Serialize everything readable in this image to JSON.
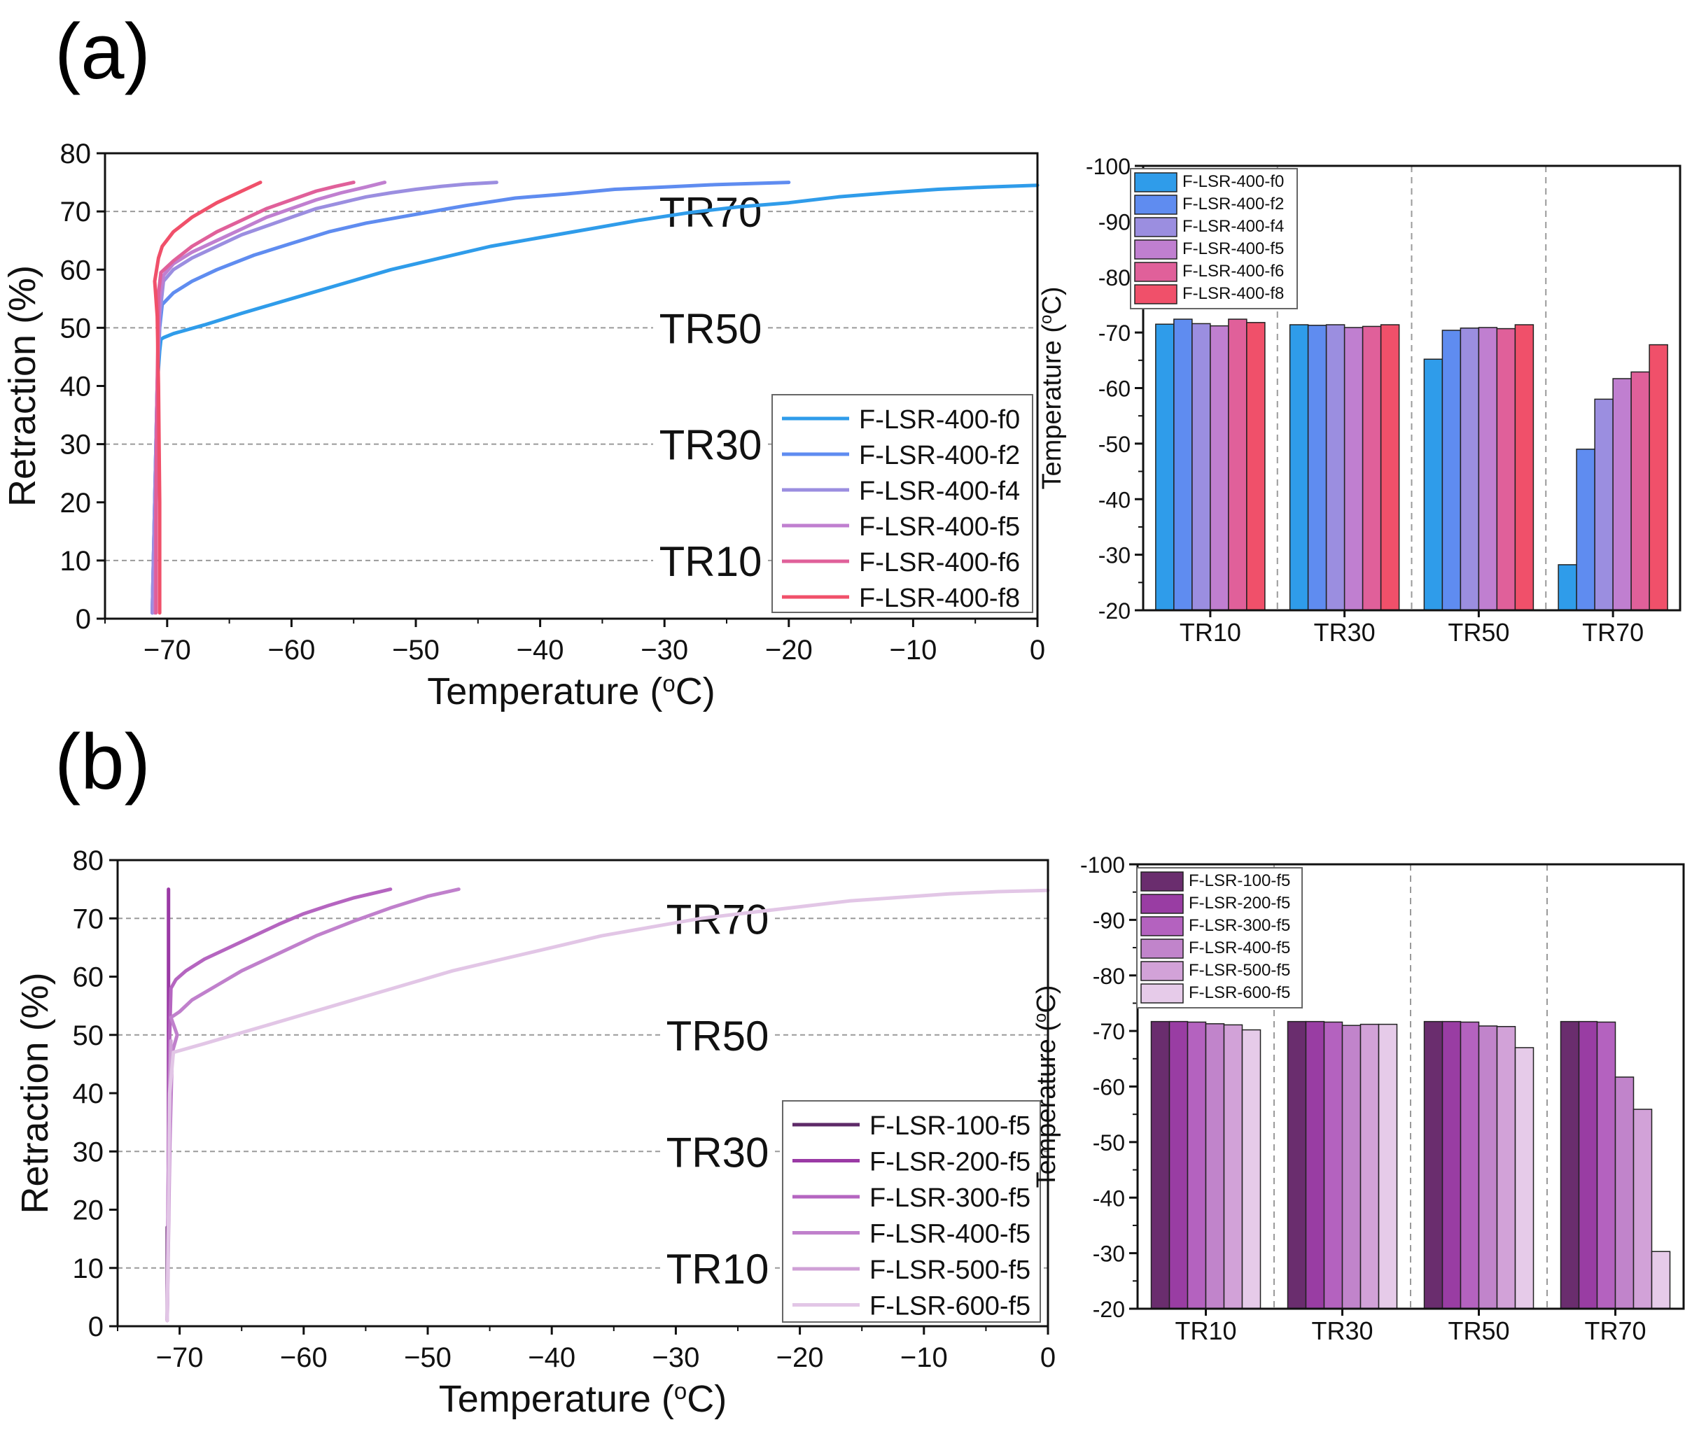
{
  "panels": [
    {
      "label": "(a)"
    },
    {
      "label": "(b)"
    }
  ],
  "chart_data": [
    {
      "type": "line",
      "panel": "(a)",
      "xlabel": "Temperature (oC)",
      "ylabel": "Retraction (%)",
      "xlim": [
        -75,
        0
      ],
      "ylim": [
        0,
        80
      ],
      "xticks": [
        -70,
        -60,
        -50,
        -40,
        -30,
        -20,
        -10,
        0
      ],
      "yticks": [
        0,
        10,
        20,
        30,
        40,
        50,
        60,
        70,
        80
      ],
      "reference_lines": [
        {
          "y": 10,
          "label": "TR10"
        },
        {
          "y": 30,
          "label": "TR30"
        },
        {
          "y": 50,
          "label": "TR50"
        },
        {
          "y": 70,
          "label": "TR70"
        }
      ],
      "legend_position": "lower-right",
      "series": [
        {
          "name": "F-LSR-400-f0",
          "color": "#2f9cea",
          "x": [
            -71.2,
            -71.0,
            -70.8,
            -70.6,
            -70.5,
            -70.3,
            -69.5,
            -67,
            -64,
            -60,
            -56,
            -52,
            -48,
            -44,
            -40,
            -36,
            -32,
            -28,
            -24,
            -20,
            -16,
            -12,
            -8,
            -4,
            0
          ],
          "y": [
            1,
            20,
            40,
            46,
            48,
            48.3,
            49,
            50.5,
            52.5,
            55,
            57.5,
            60,
            62,
            64,
            65.5,
            67,
            68.5,
            69.8,
            70.8,
            71.5,
            72.5,
            73.2,
            73.8,
            74.2,
            74.5
          ]
        },
        {
          "name": "F-LSR-400-f2",
          "color": "#5f8cf0",
          "x": [
            -71.2,
            -71.0,
            -70.8,
            -70.6,
            -70.4,
            -69.5,
            -68,
            -66,
            -63,
            -60,
            -57,
            -54,
            -50,
            -46,
            -42,
            -38,
            -34,
            -30,
            -26,
            -20
          ],
          "y": [
            1,
            20,
            40,
            50,
            54,
            56,
            58,
            60,
            62.5,
            64.5,
            66.5,
            68,
            69.5,
            71,
            72.3,
            73,
            73.8,
            74.2,
            74.6,
            75
          ]
        },
        {
          "name": "F-LSR-400-f4",
          "color": "#9b8ee0",
          "x": [
            -71.2,
            -71.0,
            -70.8,
            -70.6,
            -70.3,
            -69.5,
            -68,
            -66,
            -64,
            -62,
            -60,
            -58,
            -56,
            -54,
            -52,
            -50,
            -48,
            -46,
            -43.5
          ],
          "y": [
            1,
            20,
            40,
            52,
            58,
            60,
            62,
            64,
            66,
            67.5,
            69,
            70.5,
            71.5,
            72.5,
            73.2,
            73.8,
            74.3,
            74.7,
            75
          ]
        },
        {
          "name": "F-LSR-400-f5",
          "color": "#c07fd0",
          "x": [
            -71.0,
            -70.9,
            -70.8,
            -70.6,
            -70.3,
            -69.5,
            -68,
            -66,
            -64,
            -62,
            -60,
            -58,
            -56,
            -54,
            -52.5
          ],
          "y": [
            1,
            20,
            40,
            55,
            59,
            61,
            63,
            65,
            67,
            69,
            70.5,
            72,
            73.2,
            74.2,
            75
          ]
        },
        {
          "name": "F-LSR-400-f6",
          "color": "#e0609a",
          "x": [
            -70.9,
            -70.9,
            -70.8,
            -70.7,
            -70.5,
            -69.5,
            -68,
            -66,
            -64,
            -62,
            -60,
            -58,
            -56.5,
            -55
          ],
          "y": [
            1,
            20,
            40,
            56,
            59.5,
            61.5,
            64,
            66.5,
            68.5,
            70.5,
            72,
            73.5,
            74.3,
            75
          ]
        },
        {
          "name": "F-LSR-400-f8",
          "color": "#f0506a",
          "x": [
            -70.6,
            -70.6,
            -70.7,
            -70.8,
            -71.0,
            -70.7,
            -70.4,
            -69.5,
            -68,
            -66,
            -64,
            -62.5
          ],
          "y": [
            1,
            20,
            40,
            52,
            58,
            62,
            64,
            66.5,
            69,
            71.5,
            73.5,
            75
          ]
        }
      ]
    },
    {
      "type": "bar",
      "panel": "(a)",
      "ylabel": "Temperature (oC)",
      "ylim": [
        -20,
        -100
      ],
      "yticks": [
        -20,
        -30,
        -40,
        -50,
        -60,
        -70,
        -80,
        -90,
        -100
      ],
      "categories": [
        "TR10",
        "TR30",
        "TR50",
        "TR70"
      ],
      "legend_position": "top-left",
      "series": [
        {
          "name": "F-LSR-400-f0",
          "color": "#2f9cea",
          "values": [
            -71.5,
            -71.4,
            -65.2,
            -28.2
          ]
        },
        {
          "name": "F-LSR-400-f2",
          "color": "#5f8cf0",
          "values": [
            -72.4,
            -71.3,
            -70.4,
            -49.0
          ]
        },
        {
          "name": "F-LSR-400-f4",
          "color": "#9b8ee0",
          "values": [
            -71.6,
            -71.4,
            -70.8,
            -58.0
          ]
        },
        {
          "name": "F-LSR-400-f5",
          "color": "#c07fd0",
          "values": [
            -71.2,
            -70.9,
            -70.9,
            -61.7
          ]
        },
        {
          "name": "F-LSR-400-f6",
          "color": "#e0609a",
          "values": [
            -72.4,
            -71.1,
            -70.7,
            -62.9
          ]
        },
        {
          "name": "F-LSR-400-f8",
          "color": "#f0506a",
          "values": [
            -71.8,
            -71.4,
            -71.4,
            -67.8
          ]
        }
      ]
    },
    {
      "type": "line",
      "panel": "(b)",
      "xlabel": "Temperature (oC)",
      "ylabel": "Retraction (%)",
      "xlim": [
        -75,
        0
      ],
      "ylim": [
        0,
        80
      ],
      "xticks": [
        -70,
        -60,
        -50,
        -40,
        -30,
        -20,
        -10,
        0
      ],
      "yticks": [
        0,
        10,
        20,
        30,
        40,
        50,
        60,
        70,
        80
      ],
      "reference_lines": [
        {
          "y": 10,
          "label": "TR10"
        },
        {
          "y": 30,
          "label": "TR30"
        },
        {
          "y": 50,
          "label": "TR50"
        },
        {
          "y": 70,
          "label": "TR70"
        }
      ],
      "legend_position": "lower-right",
      "series": [
        {
          "name": "F-LSR-100-f5",
          "color": "#5e2a68",
          "x": [
            -71.0,
            -71.0,
            -71.0
          ],
          "y": [
            1,
            15,
            17
          ]
        },
        {
          "name": "F-LSR-200-f5",
          "color": "#9a3aa5",
          "x": [
            -71.0,
            -70.9,
            -70.9,
            -70.9
          ],
          "y": [
            1,
            30,
            60,
            75
          ]
        },
        {
          "name": "F-LSR-300-f5",
          "color": "#b565c0",
          "x": [
            -71.0,
            -70.9,
            -70.8,
            -70.7,
            -70.3,
            -69.5,
            -68,
            -66,
            -64,
            -62,
            -60,
            -58,
            -56,
            -54,
            -53
          ],
          "y": [
            1,
            30,
            50,
            58,
            59.5,
            61,
            63,
            65,
            67,
            69,
            70.8,
            72.2,
            73.5,
            74.5,
            75
          ]
        },
        {
          "name": "F-LSR-400-f5",
          "color": "#c080cc",
          "x": [
            -71.0,
            -70.8,
            -70.6,
            -70.2,
            -70.7,
            -70.0,
            -69,
            -67,
            -65,
            -62,
            -59,
            -56,
            -53,
            -50,
            -47.5
          ],
          "y": [
            1,
            30,
            47,
            50,
            53,
            54,
            56,
            58.5,
            61,
            64,
            67,
            69.5,
            71.8,
            73.8,
            75
          ]
        },
        {
          "name": "F-LSR-500-f5",
          "color": "#cfa0d6",
          "x": [
            -71.0,
            -70.9,
            -70.8,
            -70.7
          ],
          "y": [
            1,
            20,
            40,
            49
          ]
        },
        {
          "name": "F-LSR-600-f5",
          "color": "#e2c6e6",
          "x": [
            -71.0,
            -70.9,
            -70.8,
            -70.5,
            -68,
            -64,
            -60,
            -56,
            -52,
            -48,
            -44,
            -40,
            -36,
            -32,
            -28,
            -24,
            -20,
            -16,
            -12,
            -8,
            -4,
            0
          ],
          "y": [
            1,
            20,
            40,
            47,
            48.5,
            51,
            53.5,
            56,
            58.5,
            61,
            63,
            65,
            67,
            68.5,
            70,
            71,
            72,
            73,
            73.6,
            74.2,
            74.6,
            74.8
          ]
        }
      ]
    },
    {
      "type": "bar",
      "panel": "(b)",
      "ylabel": "Temperature (oC)",
      "ylim": [
        -20,
        -100
      ],
      "yticks": [
        -20,
        -30,
        -40,
        -50,
        -60,
        -70,
        -80,
        -90,
        -100
      ],
      "categories": [
        "TR10",
        "TR30",
        "TR50",
        "TR70"
      ],
      "legend_position": "top-left",
      "series": [
        {
          "name": "F-LSR-100-f5",
          "color": "#6a2d6e",
          "values": [
            -71.7,
            -71.7,
            -71.7,
            -71.7
          ]
        },
        {
          "name": "F-LSR-200-f5",
          "color": "#993da3",
          "values": [
            -71.7,
            -71.7,
            -71.7,
            -71.7
          ]
        },
        {
          "name": "F-LSR-300-f5",
          "color": "#b462bf",
          "values": [
            -71.6,
            -71.6,
            -71.6,
            -71.6
          ]
        },
        {
          "name": "F-LSR-400-f5",
          "color": "#c184cb",
          "values": [
            -71.3,
            -71.0,
            -70.9,
            -61.7
          ]
        },
        {
          "name": "F-LSR-500-f5",
          "color": "#d2a2d8",
          "values": [
            -71.1,
            -71.2,
            -70.8,
            -55.9
          ]
        },
        {
          "name": "F-LSR-600-f5",
          "color": "#e6cbe9",
          "values": [
            -70.2,
            -71.2,
            -67.0,
            -30.3
          ]
        }
      ]
    }
  ]
}
